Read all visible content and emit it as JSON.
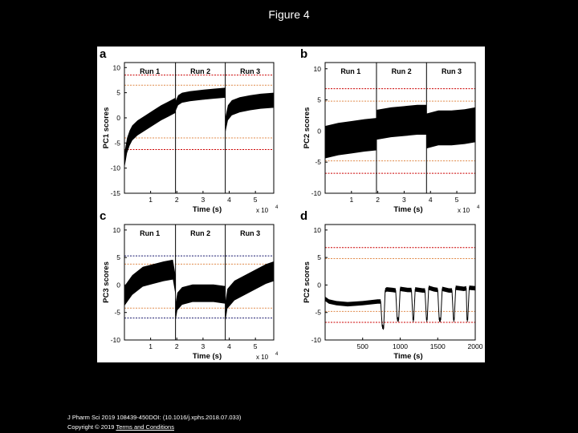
{
  "page": {
    "title": "Figure 4"
  },
  "footer": {
    "reference": "J Pharm Sci 2019 108439-450DOI: (10.1016/j.xphs.2018.07.033)",
    "copyright": "Copyright © 2019",
    "terms_link": "Terms and Conditions"
  },
  "colors": {
    "background": "#000000",
    "panel": "#ffffff",
    "trace": "#000000",
    "limit_red": "#cc0000",
    "limit_orange": "#e08a4a",
    "limit_navy": "#1a1a6e"
  },
  "chart_data": [
    {
      "type": "line",
      "panel_letter": "a",
      "title": "",
      "xlabel": "Time (s)",
      "ylabel": "PC1 scores",
      "x_exponent": "x 10",
      "xlim": [
        0,
        57000
      ],
      "ylim": [
        -15,
        11
      ],
      "xticks": [
        10000,
        20000,
        30000,
        40000,
        50000
      ],
      "xtick_labels": [
        "1",
        "2",
        "3",
        "4",
        "5"
      ],
      "yticks": [
        -15,
        -10,
        -5,
        0,
        5,
        10
      ],
      "ytick_labels": [
        "-15",
        "-10",
        "-5",
        "0",
        "5",
        "10"
      ],
      "run_boundaries": [
        19500,
        38500
      ],
      "run_labels": [
        {
          "x": 9700,
          "text": "Run 1"
        },
        {
          "x": 29000,
          "text": "Run 2"
        },
        {
          "x": 48000,
          "text": "Run 3"
        }
      ],
      "limits": [
        {
          "y": 8.5,
          "color": "#cc0000"
        },
        {
          "y": 6.5,
          "color": "#e08a4a"
        },
        {
          "y": -4.0,
          "color": "#e08a4a"
        },
        {
          "y": -6.3,
          "color": "#cc0000"
        }
      ],
      "series": [
        {
          "x": [
            0,
            1000,
            2000,
            3000,
            5000,
            8000,
            11000,
            14000,
            17000,
            19500
          ],
          "y": [
            -8.5,
            -5.5,
            -4,
            -3,
            -2,
            -1,
            0,
            1,
            1.8,
            2.5
          ],
          "band": 1.5
        },
        {
          "x": [
            19500,
            20500,
            22000,
            25000,
            30000,
            34000,
            38500
          ],
          "y": [
            2.3,
            3.5,
            4,
            4.3,
            4.6,
            4.8,
            5
          ],
          "band": 1.0
        },
        {
          "x": [
            38500,
            39500,
            41000,
            44000,
            48000,
            52000,
            57000
          ],
          "y": [
            -1.5,
            1,
            2,
            2.6,
            3,
            3.3,
            3.5
          ],
          "band": 1.5
        }
      ]
    },
    {
      "type": "line",
      "panel_letter": "b",
      "title": "",
      "xlabel": "Time (s)",
      "ylabel": "PC2 scores",
      "x_exponent": "x 10",
      "xlim": [
        0,
        57000
      ],
      "ylim": [
        -10,
        11
      ],
      "xticks": [
        10000,
        20000,
        30000,
        40000,
        50000
      ],
      "xtick_labels": [
        "1",
        "2",
        "3",
        "4",
        "5"
      ],
      "yticks": [
        -10,
        -5,
        0,
        5,
        10
      ],
      "ytick_labels": [
        "-10",
        "-5",
        "0",
        "5",
        "10"
      ],
      "run_boundaries": [
        19500,
        38500
      ],
      "run_labels": [
        {
          "x": 9700,
          "text": "Run 1"
        },
        {
          "x": 29000,
          "text": "Run 2"
        },
        {
          "x": 48000,
          "text": "Run 3"
        }
      ],
      "limits": [
        {
          "y": 6.8,
          "color": "#cc0000"
        },
        {
          "y": 4.8,
          "color": "#e08a4a"
        },
        {
          "y": -4.8,
          "color": "#e08a4a"
        },
        {
          "y": -6.8,
          "color": "#cc0000"
        }
      ],
      "series": [
        {
          "x": [
            0,
            5000,
            10000,
            15000,
            19500
          ],
          "y": [
            -1.8,
            -1.3,
            -1,
            -0.7,
            -0.5
          ],
          "band": 2.6
        },
        {
          "x": [
            19500,
            25000,
            30000,
            35000,
            38500
          ],
          "y": [
            1,
            1.4,
            1.6,
            1.8,
            1.8
          ],
          "band": 2.4
        },
        {
          "x": [
            38500,
            43000,
            48000,
            53000,
            57000
          ],
          "y": [
            0,
            0.5,
            0.5,
            0.7,
            1
          ],
          "band": 2.8
        }
      ]
    },
    {
      "type": "line",
      "panel_letter": "c",
      "title": "",
      "xlabel": "Time (s)",
      "ylabel": "PC3 scores",
      "x_exponent": "x 10",
      "xlim": [
        0,
        57000
      ],
      "ylim": [
        -10,
        11
      ],
      "xticks": [
        10000,
        20000,
        30000,
        40000,
        50000
      ],
      "xtick_labels": [
        "1",
        "2",
        "3",
        "4",
        "5"
      ],
      "yticks": [
        -10,
        -5,
        0,
        5,
        10
      ],
      "ytick_labels": [
        "-10",
        "-5",
        "0",
        "5",
        "10"
      ],
      "run_boundaries": [
        19500,
        38500
      ],
      "run_labels": [
        {
          "x": 9700,
          "text": "Run 1"
        },
        {
          "x": 29000,
          "text": "Run 2"
        },
        {
          "x": 48000,
          "text": "Run 3"
        }
      ],
      "limits": [
        {
          "y": 5.3,
          "color": "#1a1a6e"
        },
        {
          "y": 3.8,
          "color": "#e08a4a"
        },
        {
          "y": -4.2,
          "color": "#e08a4a"
        },
        {
          "y": -6.0,
          "color": "#1a1a6e"
        }
      ],
      "series": [
        {
          "x": [
            0,
            3000,
            7000,
            11000,
            15000,
            18500,
            19500
          ],
          "y": [
            -2,
            0,
            1.5,
            2,
            2.5,
            2.8,
            0
          ],
          "band": 1.8
        },
        {
          "x": [
            19500,
            20200,
            22000,
            26000,
            30000,
            34000,
            38500
          ],
          "y": [
            -5,
            -3,
            -2,
            -1.5,
            -1.5,
            -1.5,
            -1.8
          ],
          "band": 1.6
        },
        {
          "x": [
            38500,
            39300,
            42000,
            46000,
            50000,
            54000,
            57000
          ],
          "y": [
            -5,
            -2.5,
            -1,
            0,
            1,
            2,
            2.5
          ],
          "band": 1.8
        }
      ]
    },
    {
      "type": "line",
      "panel_letter": "d",
      "title": "",
      "xlabel": "Time (s)",
      "ylabel": "PC2 scores",
      "xlim": [
        0,
        2000
      ],
      "ylim": [
        -10,
        11
      ],
      "xticks": [
        500,
        1000,
        1500,
        2000
      ],
      "xtick_labels": [
        "500",
        "1000",
        "1500",
        "2000"
      ],
      "yticks": [
        -10,
        -5,
        0,
        5,
        10
      ],
      "ytick_labels": [
        "-10",
        "-5",
        "0",
        "5",
        "10"
      ],
      "limits": [
        {
          "y": 6.8,
          "color": "#cc0000"
        },
        {
          "y": 4.8,
          "color": "#e08a4a"
        },
        {
          "y": -4.8,
          "color": "#e08a4a"
        },
        {
          "y": -6.8,
          "color": "#cc0000"
        }
      ],
      "series": [
        {
          "x": [
            0,
            50,
            150,
            300,
            500,
            700,
            740,
            760,
            780,
            800,
            820,
            900,
            940,
            960,
            980,
            1000,
            1100,
            1150,
            1170,
            1180,
            1200,
            1300,
            1330,
            1350,
            1360,
            1380,
            1450,
            1500,
            1520,
            1540,
            1560,
            1650,
            1690,
            1710,
            1720,
            1740,
            1850,
            1880,
            1890,
            1900,
            1920,
            2000
          ],
          "y": [
            -2.5,
            -3,
            -3.3,
            -3.5,
            -3.3,
            -3,
            -3,
            -7.5,
            -7.8,
            -1,
            -0.8,
            -0.9,
            -1,
            -6.2,
            -6.3,
            -0.7,
            -0.9,
            -0.9,
            -6.3,
            -6.3,
            -0.8,
            -1,
            -1,
            -6.3,
            -6.3,
            -0.5,
            -0.8,
            -0.9,
            -6.3,
            -6.3,
            -0.7,
            -1,
            -1,
            -6.3,
            -6.3,
            -0.5,
            -0.7,
            -0.6,
            -6.3,
            -6.3,
            -0.5,
            -0.6
          ],
          "band": 0.4
        }
      ]
    }
  ]
}
